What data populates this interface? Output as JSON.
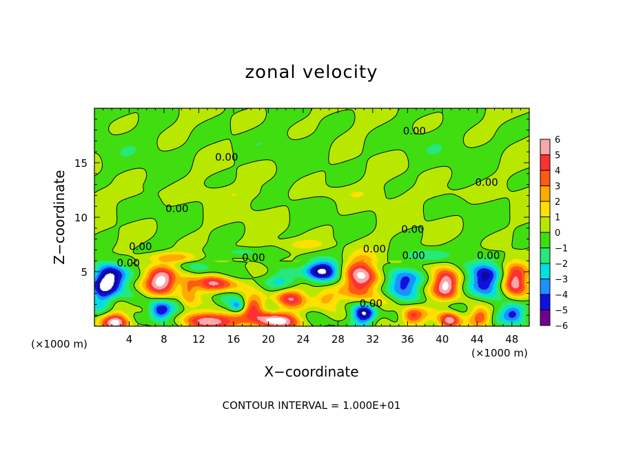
{
  "chart_data": {
    "type": "heatmap",
    "title": "zonal velocity",
    "xlabel": "X−coordinate",
    "ylabel": "Z−coordinate",
    "x_unit_left": "(×1000 m)",
    "x_unit_right": "(×1000 m)",
    "xlim": [
      0,
      50
    ],
    "ylim": [
      0,
      20
    ],
    "x_ticks": [
      4,
      8,
      12,
      16,
      20,
      24,
      28,
      32,
      36,
      40,
      44,
      48
    ],
    "x_tick_labels": [
      "4",
      "8",
      "12",
      "16",
      "20",
      "24",
      "28",
      "32",
      "36",
      "40",
      "44",
      "48"
    ],
    "y_ticks": [
      5,
      10,
      15
    ],
    "y_tick_labels": [
      "5",
      "10",
      "15"
    ],
    "colorbar": {
      "min": -6,
      "max": 6,
      "levels": [
        6,
        5,
        4,
        3,
        2,
        1,
        0,
        -1,
        -2,
        -3,
        -4,
        -5,
        -6
      ],
      "labels": [
        "6",
        "5",
        "4",
        "3",
        "2",
        "1",
        "0",
        "−1",
        "−2",
        "−3",
        "−4",
        "−5",
        "−6"
      ],
      "colors": [
        "#f7a8a8",
        "#ff3030",
        "#ff5a14",
        "#ffaa00",
        "#ffe000",
        "#b8e800",
        "#40dd10",
        "#28e87a",
        "#00e0e0",
        "#1e90ff",
        "#1010e0",
        "#0a0aa0",
        "#700090"
      ]
    },
    "contour_labels": [
      {
        "text": "0.00",
        "x": 15.2,
        "z": 15.5
      },
      {
        "text": "0.00",
        "x": 36.8,
        "z": 17.9
      },
      {
        "text": "0.00",
        "x": 45.1,
        "z": 13.2
      },
      {
        "text": "0.00",
        "x": 9.5,
        "z": 10.8
      },
      {
        "text": "0.00",
        "x": 36.6,
        "z": 8.9
      },
      {
        "text": "0.00",
        "x": 5.3,
        "z": 7.3
      },
      {
        "text": "0.00",
        "x": 18.3,
        "z": 6.3
      },
      {
        "text": "0.00",
        "x": 3.9,
        "z": 5.8
      },
      {
        "text": "0.00",
        "x": 32.2,
        "z": 7.1
      },
      {
        "text": "0.00",
        "x": 36.7,
        "z": 6.5
      },
      {
        "text": "0.00",
        "x": 45.3,
        "z": 6.5
      },
      {
        "text": "0.00",
        "x": 31.8,
        "z": 2.1
      }
    ],
    "features": [
      {
        "x": 2.1,
        "z": 4.4,
        "sx": 1.8,
        "sz": 1.3,
        "v": -6.5
      },
      {
        "x": 7.6,
        "z": 4.2,
        "sx": 2.0,
        "sz": 1.2,
        "v": 6.5
      },
      {
        "x": 14.0,
        "z": 3.9,
        "sx": 3.2,
        "sz": 0.9,
        "v": 6.6
      },
      {
        "x": 14.0,
        "z": 4.1,
        "sx": 4.2,
        "sz": 1.7,
        "v": -2.2
      },
      {
        "x": 1.0,
        "z": 3.0,
        "sx": 1.3,
        "sz": 1.8,
        "v": -3.5
      },
      {
        "x": 2.5,
        "z": 0.4,
        "sx": 1.6,
        "sz": 0.8,
        "v": 6.0
      },
      {
        "x": 7.6,
        "z": 1.4,
        "sx": 1.3,
        "sz": 0.9,
        "v": -5.5
      },
      {
        "x": 10.8,
        "z": 3.2,
        "sx": 1.0,
        "sz": 1.6,
        "v": 3.0
      },
      {
        "x": 13.8,
        "z": 0.5,
        "sx": 3.0,
        "sz": 0.8,
        "v": 6.5
      },
      {
        "x": 16.5,
        "z": 1.8,
        "sx": 1.0,
        "sz": 0.6,
        "v": -4.0
      },
      {
        "x": 18.3,
        "z": 1.9,
        "sx": 1.3,
        "sz": 0.9,
        "v": 4.0
      },
      {
        "x": 20.6,
        "z": 0.5,
        "sx": 2.6,
        "sz": 0.8,
        "v": 6.5
      },
      {
        "x": 22.5,
        "z": 2.6,
        "sx": 1.8,
        "sz": 0.9,
        "v": 4.5
      },
      {
        "x": 22.0,
        "z": 4.3,
        "sx": 2.2,
        "sz": 0.9,
        "v": -2.4
      },
      {
        "x": 26.2,
        "z": 5.1,
        "sx": 2.0,
        "sz": 0.9,
        "v": -5.5
      },
      {
        "x": 26.5,
        "z": 2.5,
        "sx": 1.5,
        "sz": 0.8,
        "v": 3.0
      },
      {
        "x": 30.8,
        "z": 4.4,
        "sx": 1.9,
        "sz": 1.8,
        "v": 6.6
      },
      {
        "x": 31.0,
        "z": 1.1,
        "sx": 1.3,
        "sz": 0.9,
        "v": -6.0
      },
      {
        "x": 35.3,
        "z": 4.0,
        "sx": 2.0,
        "sz": 1.3,
        "v": -4.8
      },
      {
        "x": 36.5,
        "z": 0.9,
        "sx": 1.3,
        "sz": 0.8,
        "v": 4.5
      },
      {
        "x": 40.5,
        "z": 3.8,
        "sx": 1.5,
        "sz": 1.3,
        "v": 6.5
      },
      {
        "x": 40.8,
        "z": 0.5,
        "sx": 1.2,
        "sz": 0.8,
        "v": 6.0
      },
      {
        "x": 44.8,
        "z": 4.3,
        "sx": 1.7,
        "sz": 1.5,
        "v": -6.0
      },
      {
        "x": 44.5,
        "z": 0.9,
        "sx": 1.2,
        "sz": 0.8,
        "v": 4.0
      },
      {
        "x": 48.3,
        "z": 4.3,
        "sx": 1.4,
        "sz": 1.5,
        "v": 6.0
      },
      {
        "x": 48.2,
        "z": 1.2,
        "sx": 1.4,
        "sz": 0.9,
        "v": -5.0
      },
      {
        "x": 38.0,
        "z": 6.5,
        "sx": 2.5,
        "sz": 0.6,
        "v": -2.3
      },
      {
        "x": 9.0,
        "z": 6.3,
        "sx": 3.0,
        "sz": 0.5,
        "v": 2.8
      },
      {
        "x": 24.0,
        "z": 7.5,
        "sx": 3.0,
        "sz": 0.5,
        "v": 1.5
      },
      {
        "x": 17.0,
        "z": 6.8,
        "sx": 2.0,
        "sz": 0.4,
        "v": -1.8
      }
    ],
    "contour_interval_label": "CONTOUR INTERVAL = 1.000E+01"
  }
}
